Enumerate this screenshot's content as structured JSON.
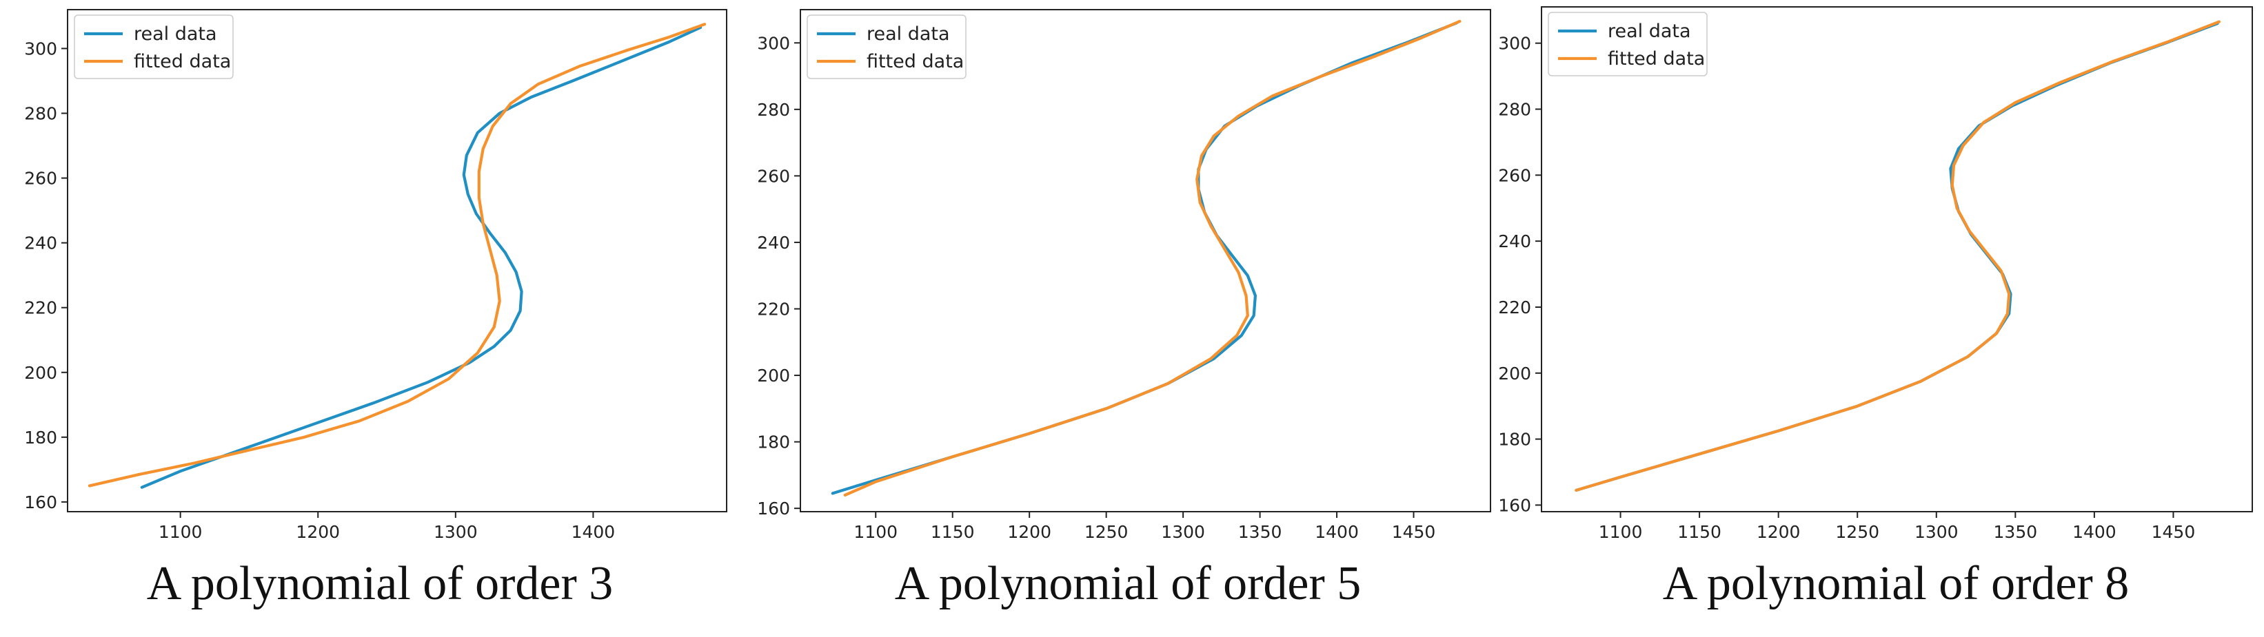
{
  "chart_data": [
    {
      "type": "line",
      "caption": "A polynomial of order 3",
      "xticks": [
        1100,
        1200,
        1300,
        1400
      ],
      "yticks": [
        160,
        180,
        200,
        220,
        240,
        260,
        280,
        300
      ],
      "xlim": [
        1018,
        1497
      ],
      "ylim": [
        157,
        312
      ],
      "legend_position": "top-left",
      "series": [
        {
          "name": "real data",
          "color": "#1f8fc4",
          "points": [
            [
              1072,
              164.5
            ],
            [
              1100,
              169.5
            ],
            [
              1140,
              175.5
            ],
            [
              1190,
              183
            ],
            [
              1240,
              190.5
            ],
            [
              1280,
              197
            ],
            [
              1310,
              203
            ],
            [
              1328,
              208
            ],
            [
              1340,
              213
            ],
            [
              1347,
              219
            ],
            [
              1348,
              225
            ],
            [
              1344,
              231
            ],
            [
              1336,
              237
            ],
            [
              1325,
              243
            ],
            [
              1315,
              249
            ],
            [
              1309,
              255
            ],
            [
              1306,
              261
            ],
            [
              1308,
              267
            ],
            [
              1316,
              274
            ],
            [
              1332,
              280
            ],
            [
              1355,
              285
            ],
            [
              1385,
              290
            ],
            [
              1420,
              296
            ],
            [
              1455,
              302
            ],
            [
              1478,
              306.5
            ]
          ]
        },
        {
          "name": "fitted data",
          "color": "#f5922e",
          "points": [
            [
              1034,
              165
            ],
            [
              1070,
              168.5
            ],
            [
              1110,
              172
            ],
            [
              1150,
              176
            ],
            [
              1190,
              180
            ],
            [
              1230,
              185
            ],
            [
              1265,
              191
            ],
            [
              1295,
              198
            ],
            [
              1316,
              206
            ],
            [
              1328,
              214
            ],
            [
              1332,
              222
            ],
            [
              1330,
              230
            ],
            [
              1325,
              238
            ],
            [
              1320,
              246
            ],
            [
              1317,
              254
            ],
            [
              1317,
              262
            ],
            [
              1320,
              269
            ],
            [
              1327,
              276
            ],
            [
              1340,
              283
            ],
            [
              1360,
              289
            ],
            [
              1390,
              294.5
            ],
            [
              1425,
              299.5
            ],
            [
              1455,
              303.5
            ],
            [
              1481,
              307.5
            ]
          ]
        }
      ]
    },
    {
      "type": "line",
      "caption": "A polynomial of order 5",
      "xticks": [
        1100,
        1150,
        1200,
        1250,
        1300,
        1350,
        1400,
        1450
      ],
      "yticks": [
        160,
        180,
        200,
        220,
        240,
        260,
        280,
        300
      ],
      "xlim": [
        1051,
        1500
      ],
      "ylim": [
        159,
        310
      ],
      "legend_position": "top-left",
      "series": [
        {
          "name": "real data",
          "color": "#1f8fc4",
          "points": [
            [
              1072,
              164.5
            ],
            [
              1100,
              168.5
            ],
            [
              1150,
              175.5
            ],
            [
              1200,
              182.5
            ],
            [
              1250,
              190
            ],
            [
              1290,
              197.5
            ],
            [
              1320,
              205
            ],
            [
              1338,
              212
            ],
            [
              1346,
              218
            ],
            [
              1347,
              224
            ],
            [
              1342,
              230
            ],
            [
              1332,
              236
            ],
            [
              1322,
              242
            ],
            [
              1314,
              249
            ],
            [
              1310,
              256
            ],
            [
              1310,
              262
            ],
            [
              1315,
              268
            ],
            [
              1327,
              275
            ],
            [
              1348,
              281
            ],
            [
              1375,
              287
            ],
            [
              1410,
              294
            ],
            [
              1445,
              300
            ],
            [
              1478,
              306
            ]
          ]
        },
        {
          "name": "fitted data",
          "color": "#f5922e",
          "points": [
            [
              1080,
              164
            ],
            [
              1100,
              168
            ],
            [
              1150,
              175.5
            ],
            [
              1200,
              182.5
            ],
            [
              1250,
              190
            ],
            [
              1290,
              197.5
            ],
            [
              1318,
              205
            ],
            [
              1335,
              212
            ],
            [
              1342,
              218
            ],
            [
              1341,
              224
            ],
            [
              1336,
              231
            ],
            [
              1327,
              238
            ],
            [
              1318,
              245
            ],
            [
              1311,
              252
            ],
            [
              1309,
              259
            ],
            [
              1312,
              266
            ],
            [
              1320,
              272
            ],
            [
              1336,
              278
            ],
            [
              1358,
              284
            ],
            [
              1390,
              290
            ],
            [
              1425,
              296
            ],
            [
              1455,
              301.5
            ],
            [
              1480,
              306.5
            ]
          ]
        }
      ]
    },
    {
      "type": "line",
      "caption": "A polynomial of order 8",
      "xticks": [
        1100,
        1150,
        1200,
        1250,
        1300,
        1350,
        1400,
        1450
      ],
      "yticks": [
        160,
        180,
        200,
        220,
        240,
        260,
        280,
        300
      ],
      "xlim": [
        1050,
        1500
      ],
      "ylim": [
        158,
        311
      ],
      "legend_position": "top-left",
      "series": [
        {
          "name": "real data",
          "color": "#1f8fc4",
          "points": [
            [
              1072,
              164.5
            ],
            [
              1100,
              168.5
            ],
            [
              1150,
              175.5
            ],
            [
              1200,
              182.5
            ],
            [
              1250,
              190
            ],
            [
              1290,
              197.5
            ],
            [
              1320,
              205
            ],
            [
              1338,
              212
            ],
            [
              1346,
              218
            ],
            [
              1347,
              224
            ],
            [
              1342,
              230
            ],
            [
              1332,
              236
            ],
            [
              1322,
              242
            ],
            [
              1314,
              249
            ],
            [
              1310,
              256
            ],
            [
              1309,
              262
            ],
            [
              1314,
              268
            ],
            [
              1327,
              275
            ],
            [
              1348,
              281
            ],
            [
              1375,
              287
            ],
            [
              1410,
              294
            ],
            [
              1445,
              300
            ],
            [
              1478,
              306
            ]
          ]
        },
        {
          "name": "fitted data",
          "color": "#f5922e",
          "points": [
            [
              1072,
              164.5
            ],
            [
              1100,
              168.5
            ],
            [
              1150,
              175.5
            ],
            [
              1200,
              182.5
            ],
            [
              1250,
              190
            ],
            [
              1290,
              197.5
            ],
            [
              1320,
              205
            ],
            [
              1338,
              212
            ],
            [
              1345,
              218
            ],
            [
              1346,
              224
            ],
            [
              1341,
              231
            ],
            [
              1331,
              237
            ],
            [
              1321,
              243
            ],
            [
              1313,
              250
            ],
            [
              1310,
              257
            ],
            [
              1311,
              263
            ],
            [
              1317,
              269
            ],
            [
              1330,
              276
            ],
            [
              1350,
              282
            ],
            [
              1378,
              288
            ],
            [
              1412,
              294.5
            ],
            [
              1447,
              300.5
            ],
            [
              1479,
              306.5
            ]
          ]
        }
      ]
    }
  ]
}
